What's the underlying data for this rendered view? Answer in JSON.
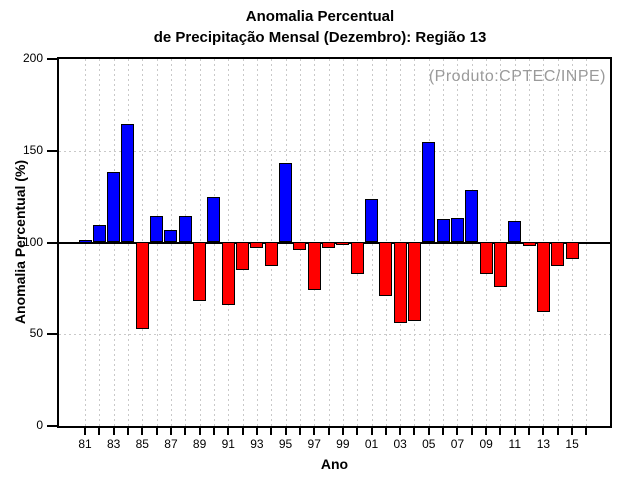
{
  "title": {
    "line1": "Anomalia Percentual",
    "line2": "de Precipitação Mensal (Dezembro): Região 13"
  },
  "annotation": "(Produto:CPTEC/INPE)",
  "axes": {
    "y_label": "Anomalia Percentual (%)",
    "x_label": "Ano",
    "y_ticks": [
      0,
      50,
      100,
      150,
      200
    ],
    "h_grid_values": [
      50,
      150
    ]
  },
  "colors": {
    "above_baseline": "#0000ff",
    "below_baseline": "#ff0000",
    "outline": "#000000",
    "grid": "#c9c9c9",
    "annotation_gray": "#9a9a9a"
  },
  "chart_data": {
    "type": "bar",
    "title": "Anomalia Percentual de Precipitação Mensal (Dezembro): Região 13",
    "xlabel": "Ano",
    "ylabel": "Anomalia Percentual (%)",
    "ylim": [
      0,
      200
    ],
    "baseline": 100,
    "grid": "dashed",
    "legend": "none",
    "color_rule": "blue if value >= 100 else red",
    "categories": [
      "81",
      "82",
      "83",
      "84",
      "85",
      "86",
      "87",
      "88",
      "89",
      "90",
      "91",
      "92",
      "93",
      "94",
      "95",
      "96",
      "97",
      "98",
      "99",
      "00",
      "01",
      "02",
      "03",
      "04",
      "05",
      "06",
      "07",
      "08",
      "09",
      "10",
      "11",
      "12",
      "13",
      "14",
      "15"
    ],
    "values": [
      101,
      109,
      138,
      164,
      53,
      114,
      106,
      114,
      68,
      124,
      66,
      85,
      97,
      87,
      143,
      96,
      74,
      97,
      99,
      83,
      123,
      71,
      56,
      57,
      154,
      112,
      113,
      128,
      83,
      76,
      111,
      98,
      62,
      87,
      91
    ],
    "x_tick_labels": [
      "81",
      "83",
      "85",
      "87",
      "89",
      "91",
      "93",
      "95",
      "97",
      "99",
      "01",
      "03",
      "05",
      "07",
      "09",
      "11",
      "13",
      "15"
    ]
  }
}
